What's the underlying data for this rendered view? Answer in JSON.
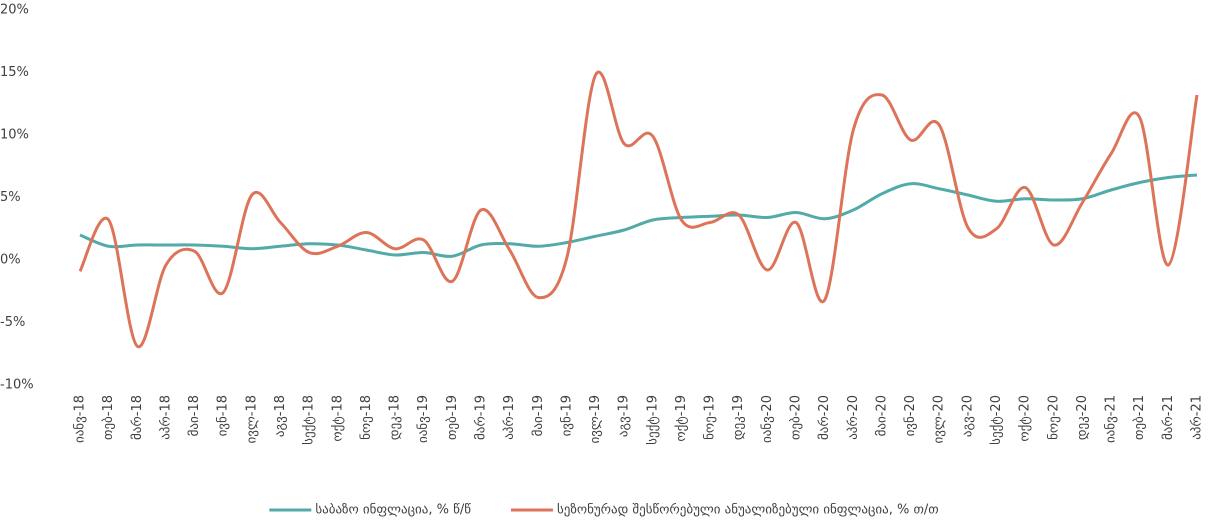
{
  "chart_data": {
    "type": "line",
    "categories": [
      "იანვ-18",
      "თებ-18",
      "მარ-18",
      "აპრ-18",
      "მაი-18",
      "ივნ-18",
      "ივლ-18",
      "აგვ-18",
      "სექტ-18",
      "ოქტ-18",
      "ნოე-18",
      "დეკ-18",
      "იანვ-19",
      "თებ-19",
      "მარ-19",
      "აპრ-19",
      "მაი-19",
      "ივნ-19",
      "ივლ-19",
      "აგვ-19",
      "სექტ-19",
      "ოქტ-19",
      "ნოე-19",
      "დეკ-19",
      "იანვ-20",
      "თებ-20",
      "მარ-20",
      "აპრ-20",
      "მაი-20",
      "ივნ-20",
      "ივლ-20",
      "აგვ-20",
      "სექტ-20",
      "ოქტ-20",
      "ნოე-20",
      "დეკ-20",
      "იანვ-21",
      "თებ-21",
      "მარ-21",
      "აპრ-21"
    ],
    "series": [
      {
        "name": "საბაზო ინფლაცია, % წ/წ",
        "color": "#52aaa9",
        "values": [
          2.0,
          1.1,
          1.2,
          1.2,
          1.2,
          1.1,
          0.9,
          1.1,
          1.3,
          1.2,
          0.8,
          0.4,
          0.6,
          0.3,
          1.2,
          1.3,
          1.1,
          1.4,
          1.9,
          2.4,
          3.2,
          3.4,
          3.5,
          3.6,
          3.4,
          3.8,
          3.3,
          4.0,
          5.3,
          6.1,
          5.7,
          5.2,
          4.7,
          4.9,
          4.8,
          4.9,
          5.6,
          6.2,
          6.6,
          6.8
        ]
      },
      {
        "name": "სეზონურად შესწორებული ანუალიზებული ინფლაცია, % თ/თ",
        "color": "#dd7459",
        "values": [
          -0.9,
          3.2,
          -6.9,
          -0.4,
          0.7,
          -2.6,
          5.2,
          3.0,
          0.6,
          1.1,
          2.2,
          0.9,
          1.6,
          -1.7,
          4.0,
          0.8,
          -3.0,
          0.2,
          14.8,
          9.3,
          9.9,
          3.2,
          3.0,
          3.6,
          -0.8,
          3.0,
          -3.2,
          10.4,
          13.2,
          9.6,
          10.8,
          2.6,
          2.5,
          5.8,
          1.2,
          4.6,
          8.5,
          11.4,
          -0.4,
          13.2
        ]
      }
    ],
    "ylim": [
      -10,
      20
    ],
    "yticks": [
      {
        "value": -10,
        "label": "-10%"
      },
      {
        "value": -5,
        "label": "-5%"
      },
      {
        "value": 0,
        "label": "0%"
      },
      {
        "value": 5,
        "label": "5%"
      },
      {
        "value": 10,
        "label": "10%"
      },
      {
        "value": 15,
        "label": "15%"
      },
      {
        "value": 20,
        "label": "20%"
      }
    ],
    "grid": false,
    "legend": "bottom"
  }
}
